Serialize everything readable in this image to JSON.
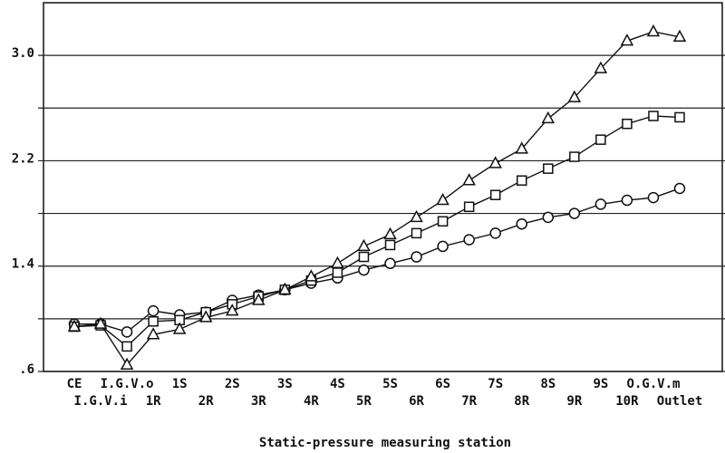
{
  "chart_data": {
    "type": "line",
    "x_label": "Static-pressure measuring station",
    "categories": [
      "CE",
      "I.G.V.i",
      "I.G.V.o",
      "1R",
      "1S",
      "2R",
      "2S",
      "3R",
      "3S",
      "4R",
      "4S",
      "5R",
      "5S",
      "6R",
      "6S",
      "7R",
      "7S",
      "8R",
      "8S",
      "9R",
      "9S",
      "10R",
      "O.G.V.m",
      "Outlet"
    ],
    "series": [
      {
        "color": "#111111",
        "marker": "circle",
        "values": [
          0.96,
          0.96,
          0.9,
          1.06,
          1.03,
          1.05,
          1.14,
          1.18,
          1.22,
          1.27,
          1.31,
          1.37,
          1.42,
          1.47,
          1.55,
          1.6,
          1.65,
          1.72,
          1.77,
          1.8,
          1.87,
          1.9,
          1.92,
          1.99
        ]
      },
      {
        "color": "#111111",
        "marker": "square",
        "values": [
          0.94,
          0.95,
          0.79,
          0.98,
          0.99,
          1.05,
          1.11,
          1.17,
          1.22,
          1.29,
          1.35,
          1.47,
          1.56,
          1.65,
          1.74,
          1.85,
          1.94,
          2.05,
          2.14,
          2.23,
          2.36,
          2.48,
          2.54,
          2.53
        ]
      },
      {
        "color": "#111111",
        "marker": "triangle",
        "values": [
          0.94,
          0.96,
          0.65,
          0.88,
          0.92,
          1.01,
          1.06,
          1.14,
          1.22,
          1.32,
          1.42,
          1.55,
          1.64,
          1.77,
          1.9,
          2.05,
          2.18,
          2.29,
          2.52,
          2.68,
          2.9,
          3.11,
          3.18,
          3.14
        ]
      }
    ],
    "ylim": [
      0.6,
      3.4
    ],
    "yticks": [
      {
        "value": 0.6,
        "label": ".6"
      },
      1.4,
      2.2,
      {
        "value": 3.0,
        "label": "3.0"
      }
    ],
    "yminor_grid": [
      1.0,
      1.8,
      2.6
    ],
    "grid": true
  }
}
